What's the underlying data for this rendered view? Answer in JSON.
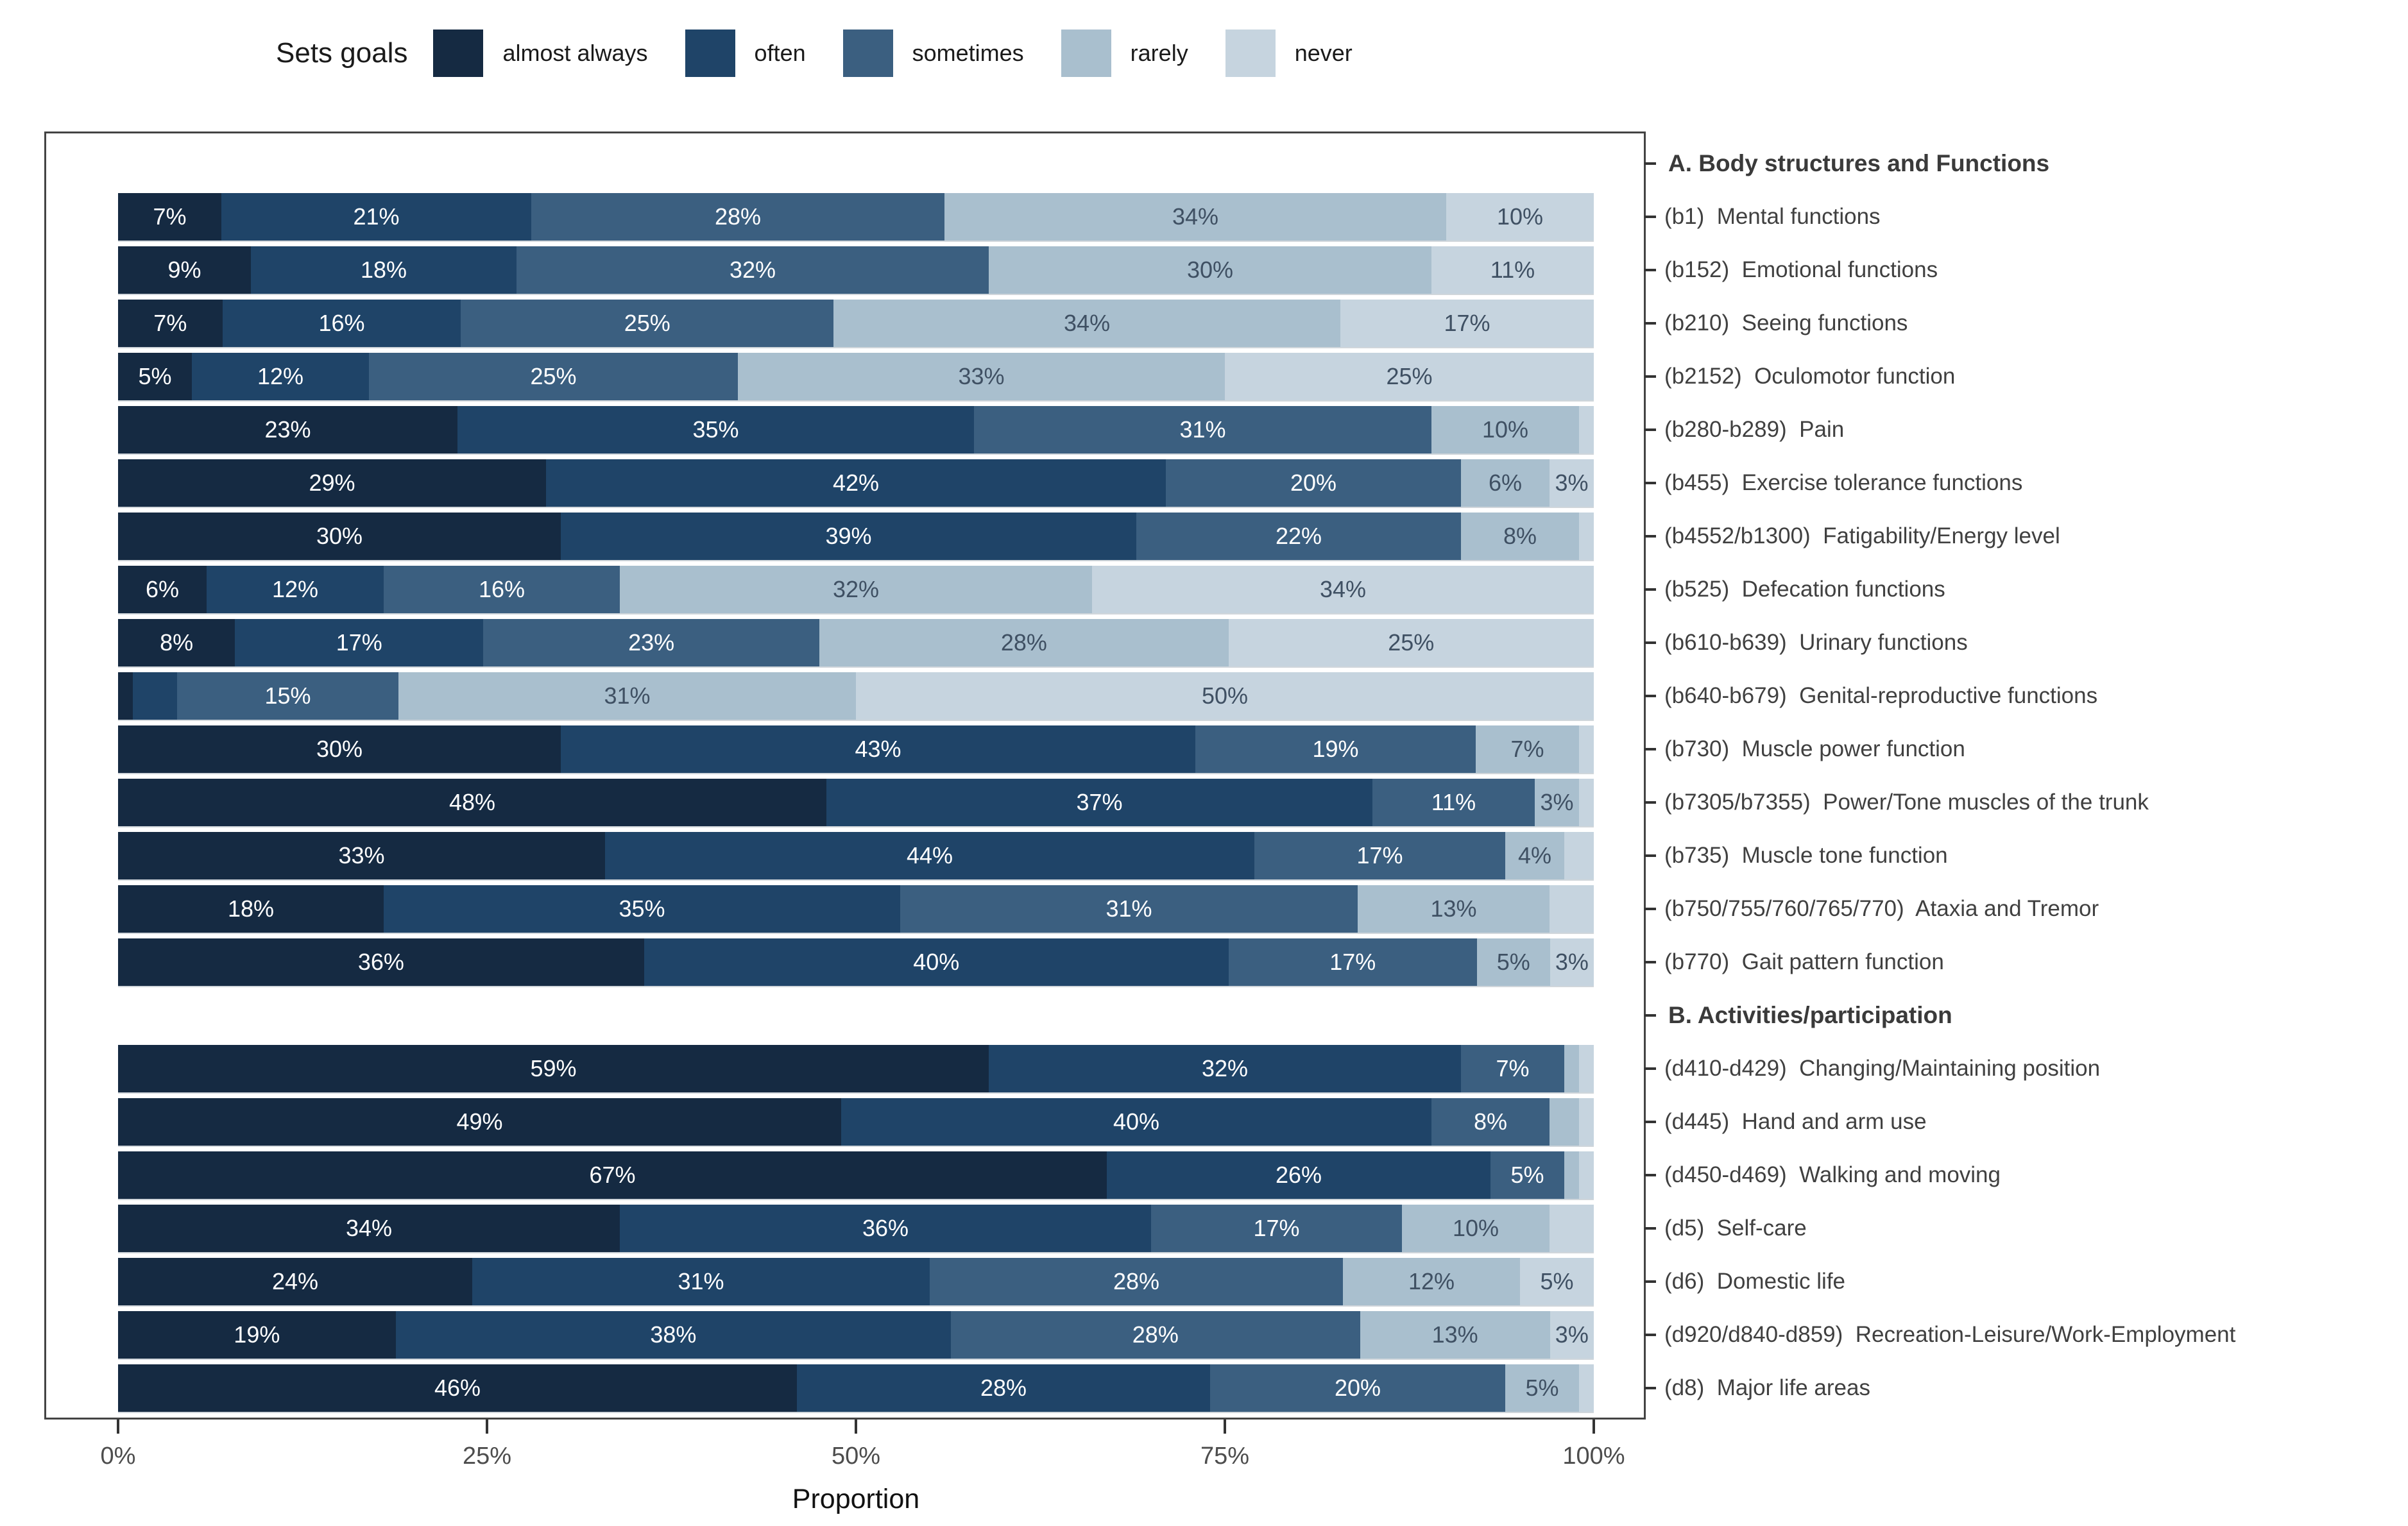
{
  "chart_data": {
    "type": "stacked_bar_horizontal",
    "legend_title": "Sets goals",
    "legend": [
      "almost always",
      "often",
      "sometimes",
      "rarely",
      "never"
    ],
    "palette": [
      "#152a42",
      "#1f4468",
      "#3b5f80",
      "#a9bfce",
      "#c6d4df"
    ],
    "label_color_on_dark": "#ffffff",
    "label_color_on_light": "#3f5063",
    "xlabel": "Proportion",
    "x_ticks": [
      {
        "pct": 0,
        "label": "0%"
      },
      {
        "pct": 25,
        "label": "25%"
      },
      {
        "pct": 50,
        "label": "50%"
      },
      {
        "pct": 75,
        "label": "75%"
      },
      {
        "pct": 100,
        "label": "100%"
      }
    ],
    "xlim": [
      0,
      100
    ],
    "legend_position": "top",
    "sections": [
      {
        "header": "A. Body structures and Functions",
        "rows": [
          {
            "label": "(b1)  Mental functions",
            "values": [
              7,
              21,
              28,
              34,
              10
            ],
            "value_labels": [
              "7%",
              "21%",
              "28%",
              "34%",
              "10%"
            ]
          },
          {
            "label": "(b152)  Emotional functions",
            "values": [
              9,
              18,
              32,
              30,
              11
            ],
            "value_labels": [
              "9%",
              "18%",
              "32%",
              "30%",
              "11%"
            ]
          },
          {
            "label": "(b210)  Seeing functions",
            "values": [
              7,
              16,
              25,
              34,
              17
            ],
            "value_labels": [
              "7%",
              "16%",
              "25%",
              "34%",
              "17%"
            ]
          },
          {
            "label": "(b2152)  Oculomotor function",
            "values": [
              5,
              12,
              25,
              33,
              25
            ],
            "value_labels": [
              "5%",
              "12%",
              "25%",
              "33%",
              "25%"
            ]
          },
          {
            "label": "(b280-b289)  Pain",
            "values": [
              23,
              35,
              31,
              10,
              1
            ],
            "value_labels": [
              "23%",
              "35%",
              "31%",
              "10%",
              ""
            ]
          },
          {
            "label": "(b455)  Exercise tolerance functions",
            "values": [
              29,
              42,
              20,
              6,
              3
            ],
            "value_labels": [
              "29%",
              "42%",
              "20%",
              "6%",
              "3%"
            ]
          },
          {
            "label": "(b4552/b1300)  Fatigability/Energy level",
            "values": [
              30,
              39,
              22,
              8,
              1
            ],
            "value_labels": [
              "30%",
              "39%",
              "22%",
              "8%",
              ""
            ]
          },
          {
            "label": "(b525)  Defecation functions",
            "values": [
              6,
              12,
              16,
              32,
              34
            ],
            "value_labels": [
              "6%",
              "12%",
              "16%",
              "32%",
              "34%"
            ]
          },
          {
            "label": "(b610-b639)  Urinary functions",
            "values": [
              8,
              17,
              23,
              28,
              25
            ],
            "value_labels": [
              "8%",
              "17%",
              "23%",
              "28%",
              "25%"
            ]
          },
          {
            "label": "(b640-b679)  Genital-reproductive functions",
            "values": [
              1,
              3,
              15,
              31,
              50
            ],
            "value_labels": [
              "",
              "",
              "15%",
              "31%",
              "50%"
            ]
          },
          {
            "label": "(b730)  Muscle power function",
            "values": [
              30,
              43,
              19,
              7,
              1
            ],
            "value_labels": [
              "30%",
              "43%",
              "19%",
              "7%",
              ""
            ]
          },
          {
            "label": "(b7305/b7355)  Power/Tone muscles of the trunk",
            "values": [
              48,
              37,
              11,
              3,
              1
            ],
            "value_labels": [
              "48%",
              "37%",
              "11%",
              "3%",
              ""
            ]
          },
          {
            "label": "(b735)  Muscle tone function",
            "values": [
              33,
              44,
              17,
              4,
              2
            ],
            "value_labels": [
              "33%",
              "44%",
              "17%",
              "4%",
              ""
            ]
          },
          {
            "label": "(b750/755/760/765/770)  Ataxia and Tremor",
            "values": [
              18,
              35,
              31,
              13,
              3
            ],
            "value_labels": [
              "18%",
              "35%",
              "31%",
              "13%",
              ""
            ]
          },
          {
            "label": "(b770)  Gait pattern function",
            "values": [
              36,
              40,
              17,
              5,
              3
            ],
            "value_labels": [
              "36%",
              "40%",
              "17%",
              "5%",
              "3%"
            ]
          }
        ]
      },
      {
        "header": "B. Activities/participation",
        "rows": [
          {
            "label": "(d410-d429)  Changing/Maintaining position",
            "values": [
              59,
              32,
              7,
              1,
              1
            ],
            "value_labels": [
              "59%",
              "32%",
              "7%",
              "",
              ""
            ]
          },
          {
            "label": "(d445)  Hand and arm use",
            "values": [
              49,
              40,
              8,
              2,
              1
            ],
            "value_labels": [
              "49%",
              "40%",
              "8%",
              "",
              ""
            ]
          },
          {
            "label": "(d450-d469)  Walking and moving",
            "values": [
              67,
              26,
              5,
              1,
              1
            ],
            "value_labels": [
              "67%",
              "26%",
              "5%",
              "",
              ""
            ]
          },
          {
            "label": "(d5)  Self-care",
            "values": [
              34,
              36,
              17,
              10,
              3
            ],
            "value_labels": [
              "34%",
              "36%",
              "17%",
              "10%",
              ""
            ]
          },
          {
            "label": "(d6)  Domestic life",
            "values": [
              24,
              31,
              28,
              12,
              5
            ],
            "value_labels": [
              "24%",
              "31%",
              "28%",
              "12%",
              "5%"
            ]
          },
          {
            "label": "(d920/d840-d859)  Recreation-Leisure/Work-Employment",
            "values": [
              19,
              38,
              28,
              13,
              3
            ],
            "value_labels": [
              "19%",
              "38%",
              "28%",
              "13%",
              "3%"
            ]
          },
          {
            "label": "(d8)  Major life areas",
            "values": [
              46,
              28,
              20,
              5,
              1
            ],
            "value_labels": [
              "46%",
              "28%",
              "20%",
              "5%",
              ""
            ]
          }
        ]
      }
    ]
  }
}
